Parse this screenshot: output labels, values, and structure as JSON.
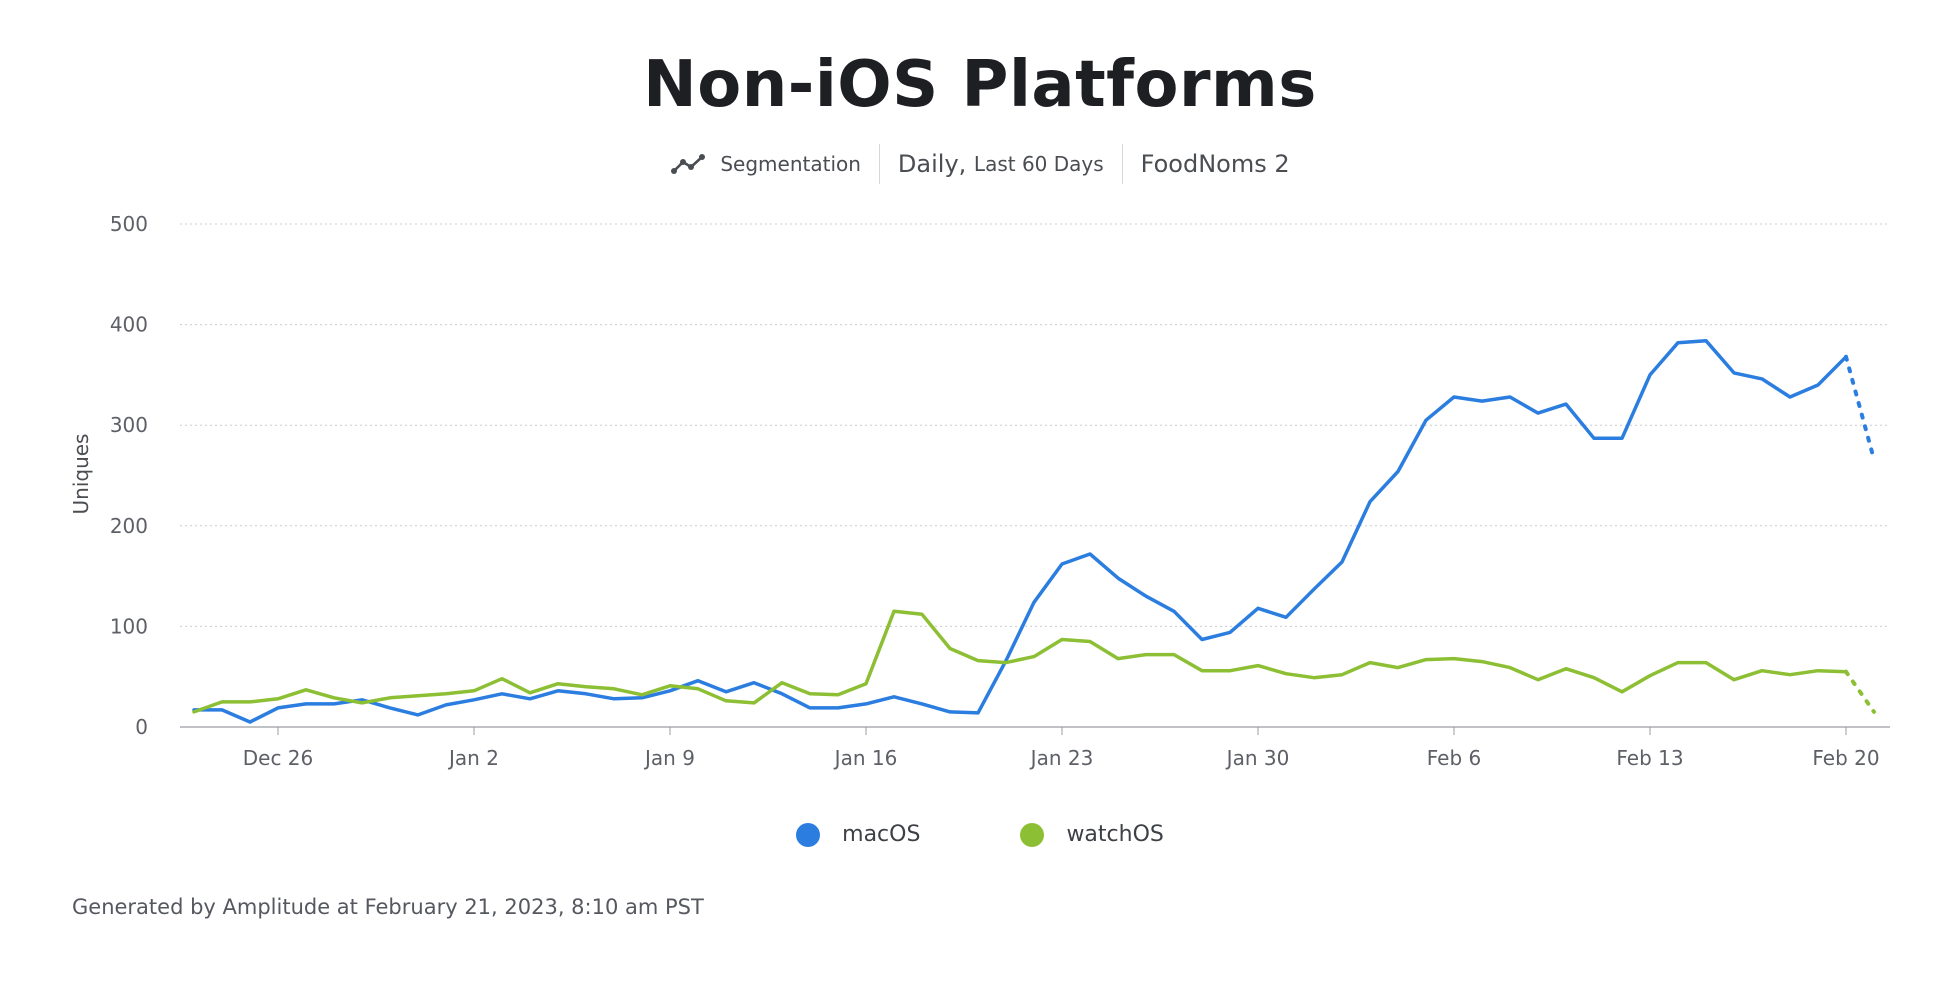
{
  "header": {
    "title": "Non-iOS Platforms",
    "segmentation_label": "Segmentation",
    "interval_label": "Daily,",
    "interval_range": "Last 60 Days",
    "app_name": "FoodNoms 2"
  },
  "icons": {
    "segmentation": "line-chart-icon"
  },
  "footer": {
    "text": "Generated by Amplitude at February 21, 2023, 8:10 am PST"
  },
  "colors": {
    "macOS": "#2b7de0",
    "watchOS": "#8dbf34",
    "grid": "#c9ccd1",
    "axis": "#9a9da2"
  },
  "chart_data": {
    "type": "line",
    "title": "Non-iOS Platforms",
    "ylabel": "Uniques",
    "xlabel": "",
    "ylim": [
      0,
      500
    ],
    "yticks": [
      0,
      100,
      200,
      300,
      400,
      500
    ],
    "xtick_labels": [
      "Dec 26",
      "Jan 2",
      "Jan 9",
      "Jan 16",
      "Jan 23",
      "Jan 30",
      "Feb 6",
      "Feb 13",
      "Feb 20"
    ],
    "xtick_dates": [
      "2022-12-26",
      "2023-01-02",
      "2023-01-09",
      "2023-01-16",
      "2023-01-23",
      "2023-01-30",
      "2023-02-06",
      "2023-02-13",
      "2023-02-20"
    ],
    "x_start": "2022-12-23",
    "x_end": "2023-02-21",
    "incomplete_last_point": true,
    "grid": true,
    "legend_position": "bottom",
    "series": [
      {
        "name": "macOS",
        "values": [
          17,
          17,
          5,
          19,
          23,
          23,
          27,
          19,
          12,
          22,
          27,
          33,
          28,
          36,
          33,
          28,
          29,
          36,
          46,
          35,
          44,
          33,
          19,
          19,
          23,
          30,
          23,
          15,
          14,
          66,
          124,
          162,
          172,
          148,
          130,
          115,
          87,
          94,
          118,
          109,
          137,
          164,
          224,
          254,
          305,
          328,
          324,
          328,
          312,
          321,
          287,
          287,
          350,
          382,
          384,
          352,
          346,
          328,
          340,
          368,
          266
        ]
      },
      {
        "name": "watchOS",
        "values": [
          15,
          25,
          25,
          28,
          37,
          29,
          24,
          29,
          31,
          33,
          36,
          48,
          34,
          43,
          40,
          38,
          32,
          41,
          38,
          26,
          24,
          44,
          33,
          32,
          43,
          115,
          112,
          78,
          66,
          64,
          70,
          87,
          85,
          68,
          72,
          72,
          56,
          56,
          61,
          53,
          49,
          52,
          64,
          59,
          67,
          68,
          65,
          59,
          47,
          58,
          49,
          35,
          51,
          64,
          64,
          47,
          56,
          52,
          56,
          55,
          15
        ]
      }
    ]
  }
}
